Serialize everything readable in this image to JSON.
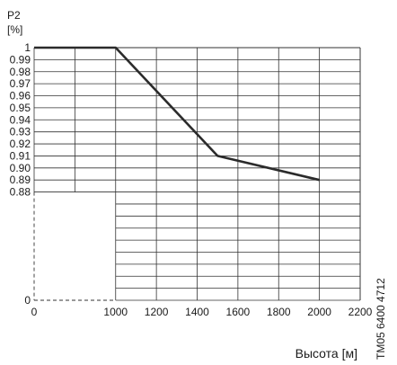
{
  "chart_data": {
    "type": "line",
    "y_unit_top": "P2",
    "y_unit_bottom": "[%]",
    "xlabel": "Высота [м]",
    "x_ticks": [
      0,
      1000,
      1200,
      1400,
      1600,
      1800,
      2000,
      2200
    ],
    "y_ticks": [
      "0",
      "0.88",
      "0.89",
      "0.90",
      "0.91",
      "0.92",
      "0.93",
      "0.94",
      "0.95",
      "0.96",
      "0.97",
      "0.98",
      "0.99",
      "1"
    ],
    "xlim": [
      0,
      2200
    ],
    "ylim_upper": [
      0.88,
      1.0
    ],
    "axis_break": {
      "y_from": 0,
      "y_to": 0.88,
      "x_from": 0,
      "x_to": 1000
    },
    "series": [
      {
        "x": [
          0,
          1000,
          1500,
          2000
        ],
        "y": [
          1.0,
          1.0,
          0.91,
          0.89
        ]
      }
    ],
    "grid": true,
    "side_note": "TM05 6400 4712"
  }
}
